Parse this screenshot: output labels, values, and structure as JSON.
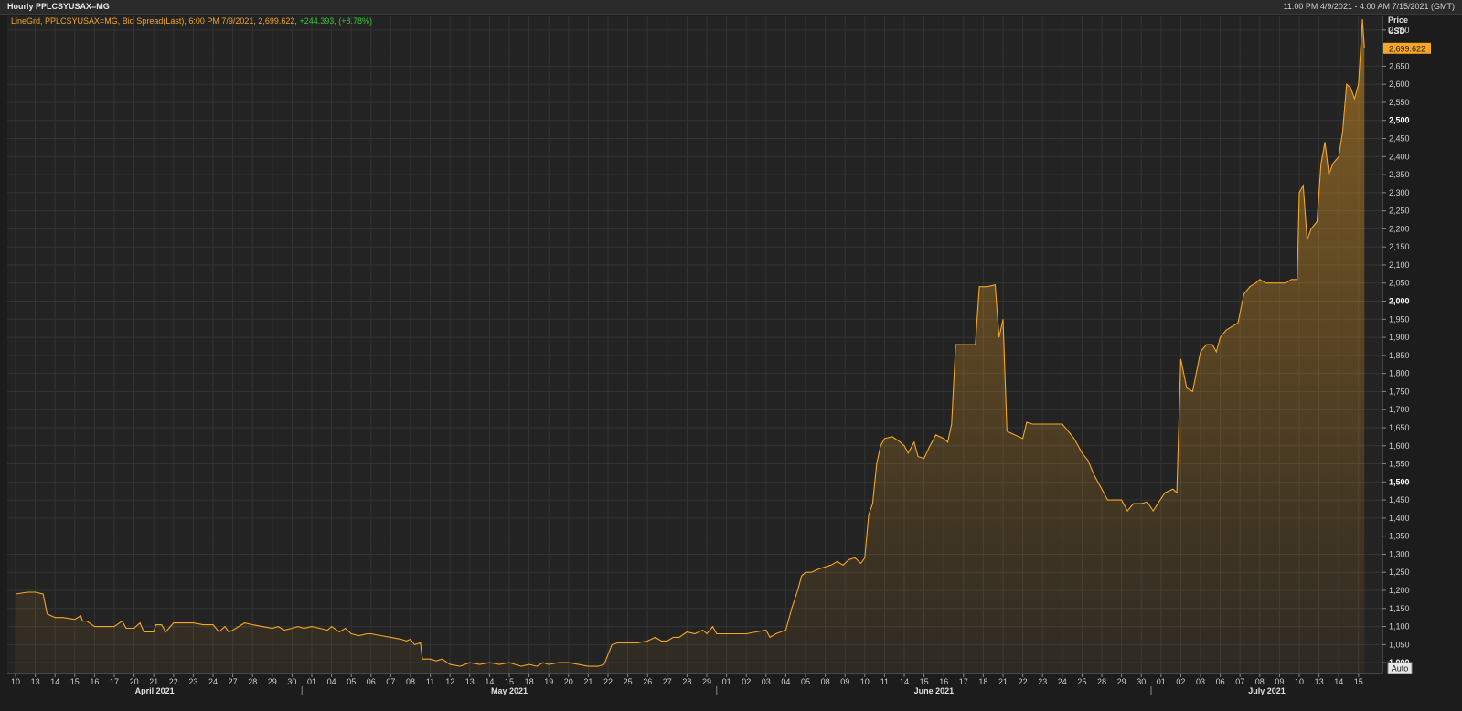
{
  "window": {
    "title": "Hourly PPLCSYUSAX=MG",
    "date_range": "11:00 PM 4/9/2021 - 4:00 AM 7/15/2021 (GMT)"
  },
  "colors": {
    "background": "#1c1c1c",
    "plot_background": "#232323",
    "grid": "#333333",
    "series": "#f5a623",
    "change_positive": "#33cc33",
    "last_price_badge": "#f5a623"
  },
  "legend": {
    "prefix": "LineGrd, PPLCSYUSAX=MG, Bid Spread(Last), 6:00 PM 7/9/2021, 2,699.622, ",
    "change": "+244.393, (+8.78%)"
  },
  "axis": {
    "title_line1": "Price",
    "title_line2": "USD",
    "last_price_label": "2,699.622",
    "auto_button": "Auto"
  },
  "chart_data": {
    "type": "area",
    "title": "",
    "ylabel": "Price USD",
    "ylim": [
      970,
      2790
    ],
    "y_ticks": [
      1000,
      1050,
      1100,
      1150,
      1200,
      1250,
      1300,
      1350,
      1400,
      1450,
      1500,
      1550,
      1600,
      1650,
      1700,
      1750,
      1800,
      1850,
      1900,
      1950,
      2000,
      2050,
      2100,
      2150,
      2200,
      2250,
      2300,
      2350,
      2400,
      2450,
      2500,
      2550,
      2600,
      2650,
      2700,
      2750
    ],
    "bold_ticks": [
      1000,
      1500,
      2000,
      2500
    ],
    "x_ticks": [
      "10",
      "13",
      "14",
      "15",
      "16",
      "17",
      "20",
      "21",
      "22",
      "23",
      "24",
      "27",
      "28",
      "29",
      "30",
      "01",
      "04",
      "05",
      "06",
      "07",
      "08",
      "11",
      "12",
      "13",
      "14",
      "15",
      "18",
      "19",
      "20",
      "21",
      "22",
      "25",
      "26",
      "27",
      "28",
      "29",
      "01",
      "02",
      "03",
      "04",
      "05",
      "08",
      "09",
      "10",
      "11",
      "14",
      "15",
      "16",
      "17",
      "18",
      "21",
      "22",
      "23",
      "24",
      "25",
      "28",
      "29",
      "30",
      "01",
      "02",
      "03",
      "06",
      "07",
      "08",
      "09",
      "10",
      "13",
      "14",
      "15"
    ],
    "months": [
      "April 2021",
      "May 2021",
      "June 2021",
      "July 2021"
    ],
    "month_starts": [
      15,
      36,
      58
    ],
    "series": [
      {
        "name": "PPLCSYUSAX=MG",
        "points": [
          [
            0,
            1190
          ],
          [
            0.6,
            1195
          ],
          [
            1,
            1195
          ],
          [
            1.4,
            1190
          ],
          [
            1.6,
            1135
          ],
          [
            1.8,
            1130
          ],
          [
            2,
            1125
          ],
          [
            2.4,
            1125
          ],
          [
            3,
            1120
          ],
          [
            3.3,
            1130
          ],
          [
            3.4,
            1115
          ],
          [
            3.6,
            1115
          ],
          [
            4,
            1100
          ],
          [
            4.5,
            1100
          ],
          [
            5,
            1100
          ],
          [
            5.4,
            1115
          ],
          [
            5.6,
            1095
          ],
          [
            6,
            1095
          ],
          [
            6.3,
            1110
          ],
          [
            6.5,
            1085
          ],
          [
            7,
            1085
          ],
          [
            7.1,
            1105
          ],
          [
            7.4,
            1105
          ],
          [
            7.6,
            1085
          ],
          [
            8,
            1110
          ],
          [
            8.5,
            1110
          ],
          [
            9,
            1110
          ],
          [
            9.5,
            1105
          ],
          [
            10,
            1105
          ],
          [
            10.3,
            1085
          ],
          [
            10.6,
            1100
          ],
          [
            10.8,
            1085
          ],
          [
            11,
            1090
          ],
          [
            11.3,
            1100
          ],
          [
            11.6,
            1110
          ],
          [
            12,
            1105
          ],
          [
            12.5,
            1100
          ],
          [
            13,
            1095
          ],
          [
            13.3,
            1100
          ],
          [
            13.6,
            1090
          ],
          [
            14,
            1095
          ],
          [
            14.3,
            1100
          ],
          [
            14.6,
            1095
          ],
          [
            15,
            1100
          ],
          [
            15.4,
            1095
          ],
          [
            15.8,
            1090
          ],
          [
            16,
            1100
          ],
          [
            16.4,
            1085
          ],
          [
            16.7,
            1095
          ],
          [
            17,
            1080
          ],
          [
            17.4,
            1075
          ],
          [
            17.8,
            1080
          ],
          [
            18,
            1080
          ],
          [
            18.5,
            1075
          ],
          [
            19,
            1070
          ],
          [
            19.5,
            1065
          ],
          [
            19.8,
            1060
          ],
          [
            20,
            1065
          ],
          [
            20.2,
            1050
          ],
          [
            20.5,
            1055
          ],
          [
            20.6,
            1010
          ],
          [
            21,
            1010
          ],
          [
            21.3,
            1005
          ],
          [
            21.6,
            1010
          ],
          [
            22,
            995
          ],
          [
            22.5,
            990
          ],
          [
            23,
            1000
          ],
          [
            23.5,
            995
          ],
          [
            24,
            1000
          ],
          [
            24.5,
            995
          ],
          [
            25,
            1000
          ],
          [
            25.3,
            995
          ],
          [
            25.6,
            990
          ],
          [
            26,
            995
          ],
          [
            26.4,
            990
          ],
          [
            26.7,
            1000
          ],
          [
            27,
            995
          ],
          [
            27.5,
            1000
          ],
          [
            28,
            1000
          ],
          [
            28.5,
            995
          ],
          [
            29,
            990
          ],
          [
            29.5,
            990
          ],
          [
            29.8,
            995
          ],
          [
            30.2,
            1050
          ],
          [
            30.5,
            1055
          ],
          [
            31,
            1055
          ],
          [
            31.5,
            1055
          ],
          [
            32,
            1060
          ],
          [
            32.4,
            1070
          ],
          [
            32.7,
            1060
          ],
          [
            33,
            1060
          ],
          [
            33.3,
            1070
          ],
          [
            33.6,
            1070
          ],
          [
            34,
            1085
          ],
          [
            34.4,
            1080
          ],
          [
            34.8,
            1090
          ],
          [
            35,
            1080
          ],
          [
            35.3,
            1100
          ],
          [
            35.5,
            1080
          ],
          [
            36,
            1080
          ],
          [
            36.5,
            1080
          ],
          [
            37,
            1080
          ],
          [
            37.5,
            1085
          ],
          [
            38,
            1090
          ],
          [
            38.2,
            1070
          ],
          [
            38.5,
            1080
          ],
          [
            39,
            1090
          ],
          [
            39.3,
            1150
          ],
          [
            39.6,
            1200
          ],
          [
            39.8,
            1240
          ],
          [
            40,
            1250
          ],
          [
            40.3,
            1250
          ],
          [
            40.7,
            1260
          ],
          [
            41,
            1265
          ],
          [
            41.3,
            1270
          ],
          [
            41.6,
            1280
          ],
          [
            41.9,
            1270
          ],
          [
            42.2,
            1285
          ],
          [
            42.5,
            1290
          ],
          [
            42.8,
            1275
          ],
          [
            43,
            1290
          ],
          [
            43.2,
            1410
          ],
          [
            43.4,
            1440
          ],
          [
            43.6,
            1550
          ],
          [
            43.8,
            1600
          ],
          [
            44,
            1620
          ],
          [
            44.4,
            1625
          ],
          [
            44.8,
            1610
          ],
          [
            45,
            1600
          ],
          [
            45.2,
            1580
          ],
          [
            45.5,
            1610
          ],
          [
            45.7,
            1570
          ],
          [
            46,
            1565
          ],
          [
            46.3,
            1600
          ],
          [
            46.6,
            1630
          ],
          [
            47,
            1620
          ],
          [
            47.2,
            1610
          ],
          [
            47.4,
            1660
          ],
          [
            47.6,
            1880
          ],
          [
            48,
            1880
          ],
          [
            48.4,
            1880
          ],
          [
            48.6,
            1880
          ],
          [
            48.8,
            2040
          ],
          [
            49.2,
            2040
          ],
          [
            49.6,
            2045
          ],
          [
            49.8,
            1900
          ],
          [
            50,
            1950
          ],
          [
            50.2,
            1640
          ],
          [
            50.6,
            1630
          ],
          [
            51,
            1620
          ],
          [
            51.2,
            1665
          ],
          [
            51.5,
            1660
          ],
          [
            52,
            1660
          ],
          [
            52.5,
            1660
          ],
          [
            53,
            1660
          ],
          [
            53.3,
            1640
          ],
          [
            53.6,
            1620
          ],
          [
            54,
            1580
          ],
          [
            54.3,
            1560
          ],
          [
            54.6,
            1520
          ],
          [
            55,
            1480
          ],
          [
            55.3,
            1450
          ],
          [
            55.6,
            1450
          ],
          [
            56,
            1450
          ],
          [
            56.3,
            1420
          ],
          [
            56.6,
            1440
          ],
          [
            57,
            1440
          ],
          [
            57.3,
            1445
          ],
          [
            57.6,
            1420
          ],
          [
            57.9,
            1445
          ],
          [
            58.2,
            1470
          ],
          [
            58.6,
            1480
          ],
          [
            58.8,
            1470
          ],
          [
            59,
            1840
          ],
          [
            59.3,
            1760
          ],
          [
            59.6,
            1750
          ],
          [
            60,
            1860
          ],
          [
            60.3,
            1880
          ],
          [
            60.6,
            1880
          ],
          [
            60.8,
            1860
          ],
          [
            61,
            1900
          ],
          [
            61.3,
            1920
          ],
          [
            61.6,
            1930
          ],
          [
            61.9,
            1940
          ],
          [
            62.2,
            2020
          ],
          [
            62.5,
            2040
          ],
          [
            62.8,
            2050
          ],
          [
            63,
            2060
          ],
          [
            63.3,
            2050
          ],
          [
            63.6,
            2050
          ],
          [
            64,
            2050
          ],
          [
            64.3,
            2050
          ],
          [
            64.6,
            2060
          ],
          [
            64.9,
            2060
          ],
          [
            65,
            2300
          ],
          [
            65.2,
            2320
          ],
          [
            65.4,
            2170
          ],
          [
            65.6,
            2200
          ],
          [
            65.9,
            2220
          ],
          [
            66.1,
            2380
          ],
          [
            66.3,
            2440
          ],
          [
            66.5,
            2350
          ],
          [
            66.7,
            2380
          ],
          [
            67,
            2400
          ],
          [
            67.2,
            2470
          ],
          [
            67.4,
            2600
          ],
          [
            67.6,
            2590
          ],
          [
            67.8,
            2560
          ],
          [
            68,
            2600
          ],
          [
            68.2,
            2780
          ],
          [
            68.3,
            2699.622
          ]
        ]
      }
    ]
  }
}
